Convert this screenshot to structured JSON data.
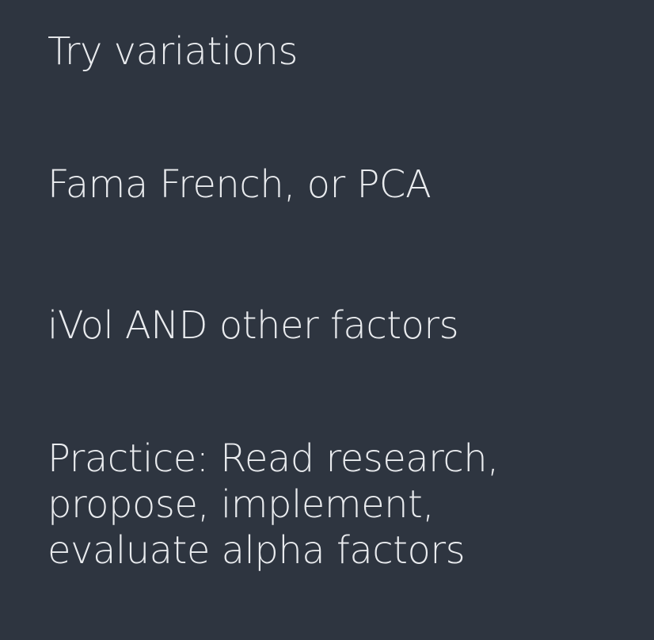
{
  "slide": {
    "lines": [
      "Try variations",
      "Fama French, or PCA",
      "iVol AND other factors",
      "Practice: Read research,\npropose, implement,\nevaluate alpha factors"
    ],
    "background_color": "#2e3540",
    "text_color": "#e9ebee"
  }
}
